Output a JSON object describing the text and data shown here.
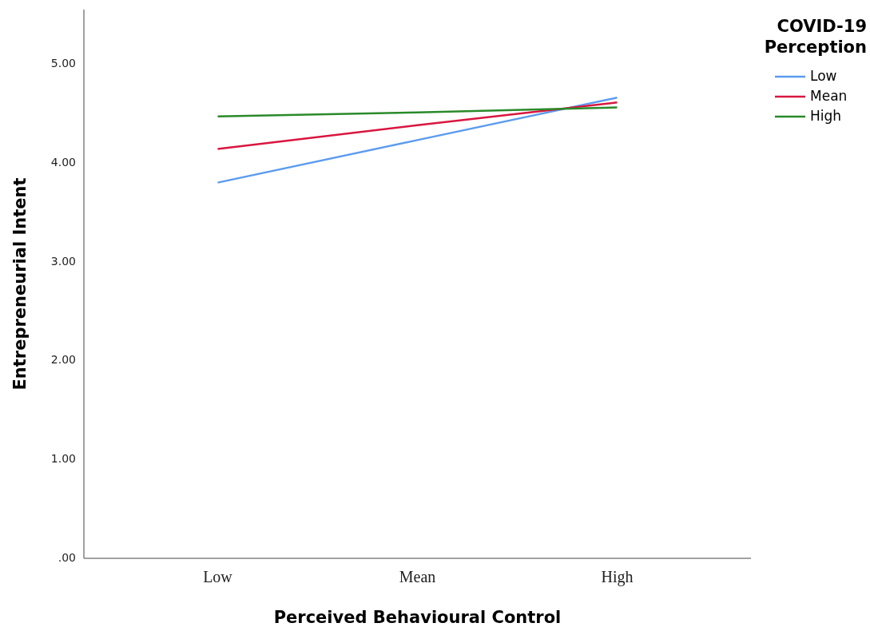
{
  "chart_data": {
    "type": "line",
    "xlabel": "Perceived Behavioural Control",
    "ylabel": "Entrepreneurial Intent",
    "legend_title": "COVID-19\nPerception",
    "legend": "top right",
    "grid": false,
    "marker": "none",
    "line_style": "solid",
    "categories": [
      "Low",
      "Mean",
      "High"
    ],
    "ylim": [
      0,
      5.55
    ],
    "yticks": [
      {
        "value": 0,
        "label": ".00"
      },
      {
        "value": 1,
        "label": "1.00"
      },
      {
        "value": 2,
        "label": "2.00"
      },
      {
        "value": 3,
        "label": "3.00"
      },
      {
        "value": 4,
        "label": "4.00"
      },
      {
        "value": 5,
        "label": "5.00"
      }
    ],
    "series": [
      {
        "name": "Low",
        "color": "#5b9bef",
        "values": [
          3.8,
          4.23,
          4.66
        ]
      },
      {
        "name": "Mean",
        "color": "#d9163f",
        "values": [
          4.14,
          4.38,
          4.61
        ]
      },
      {
        "name": "High",
        "color": "#2a8a2a",
        "values": [
          4.47,
          4.51,
          4.56
        ]
      }
    ]
  }
}
